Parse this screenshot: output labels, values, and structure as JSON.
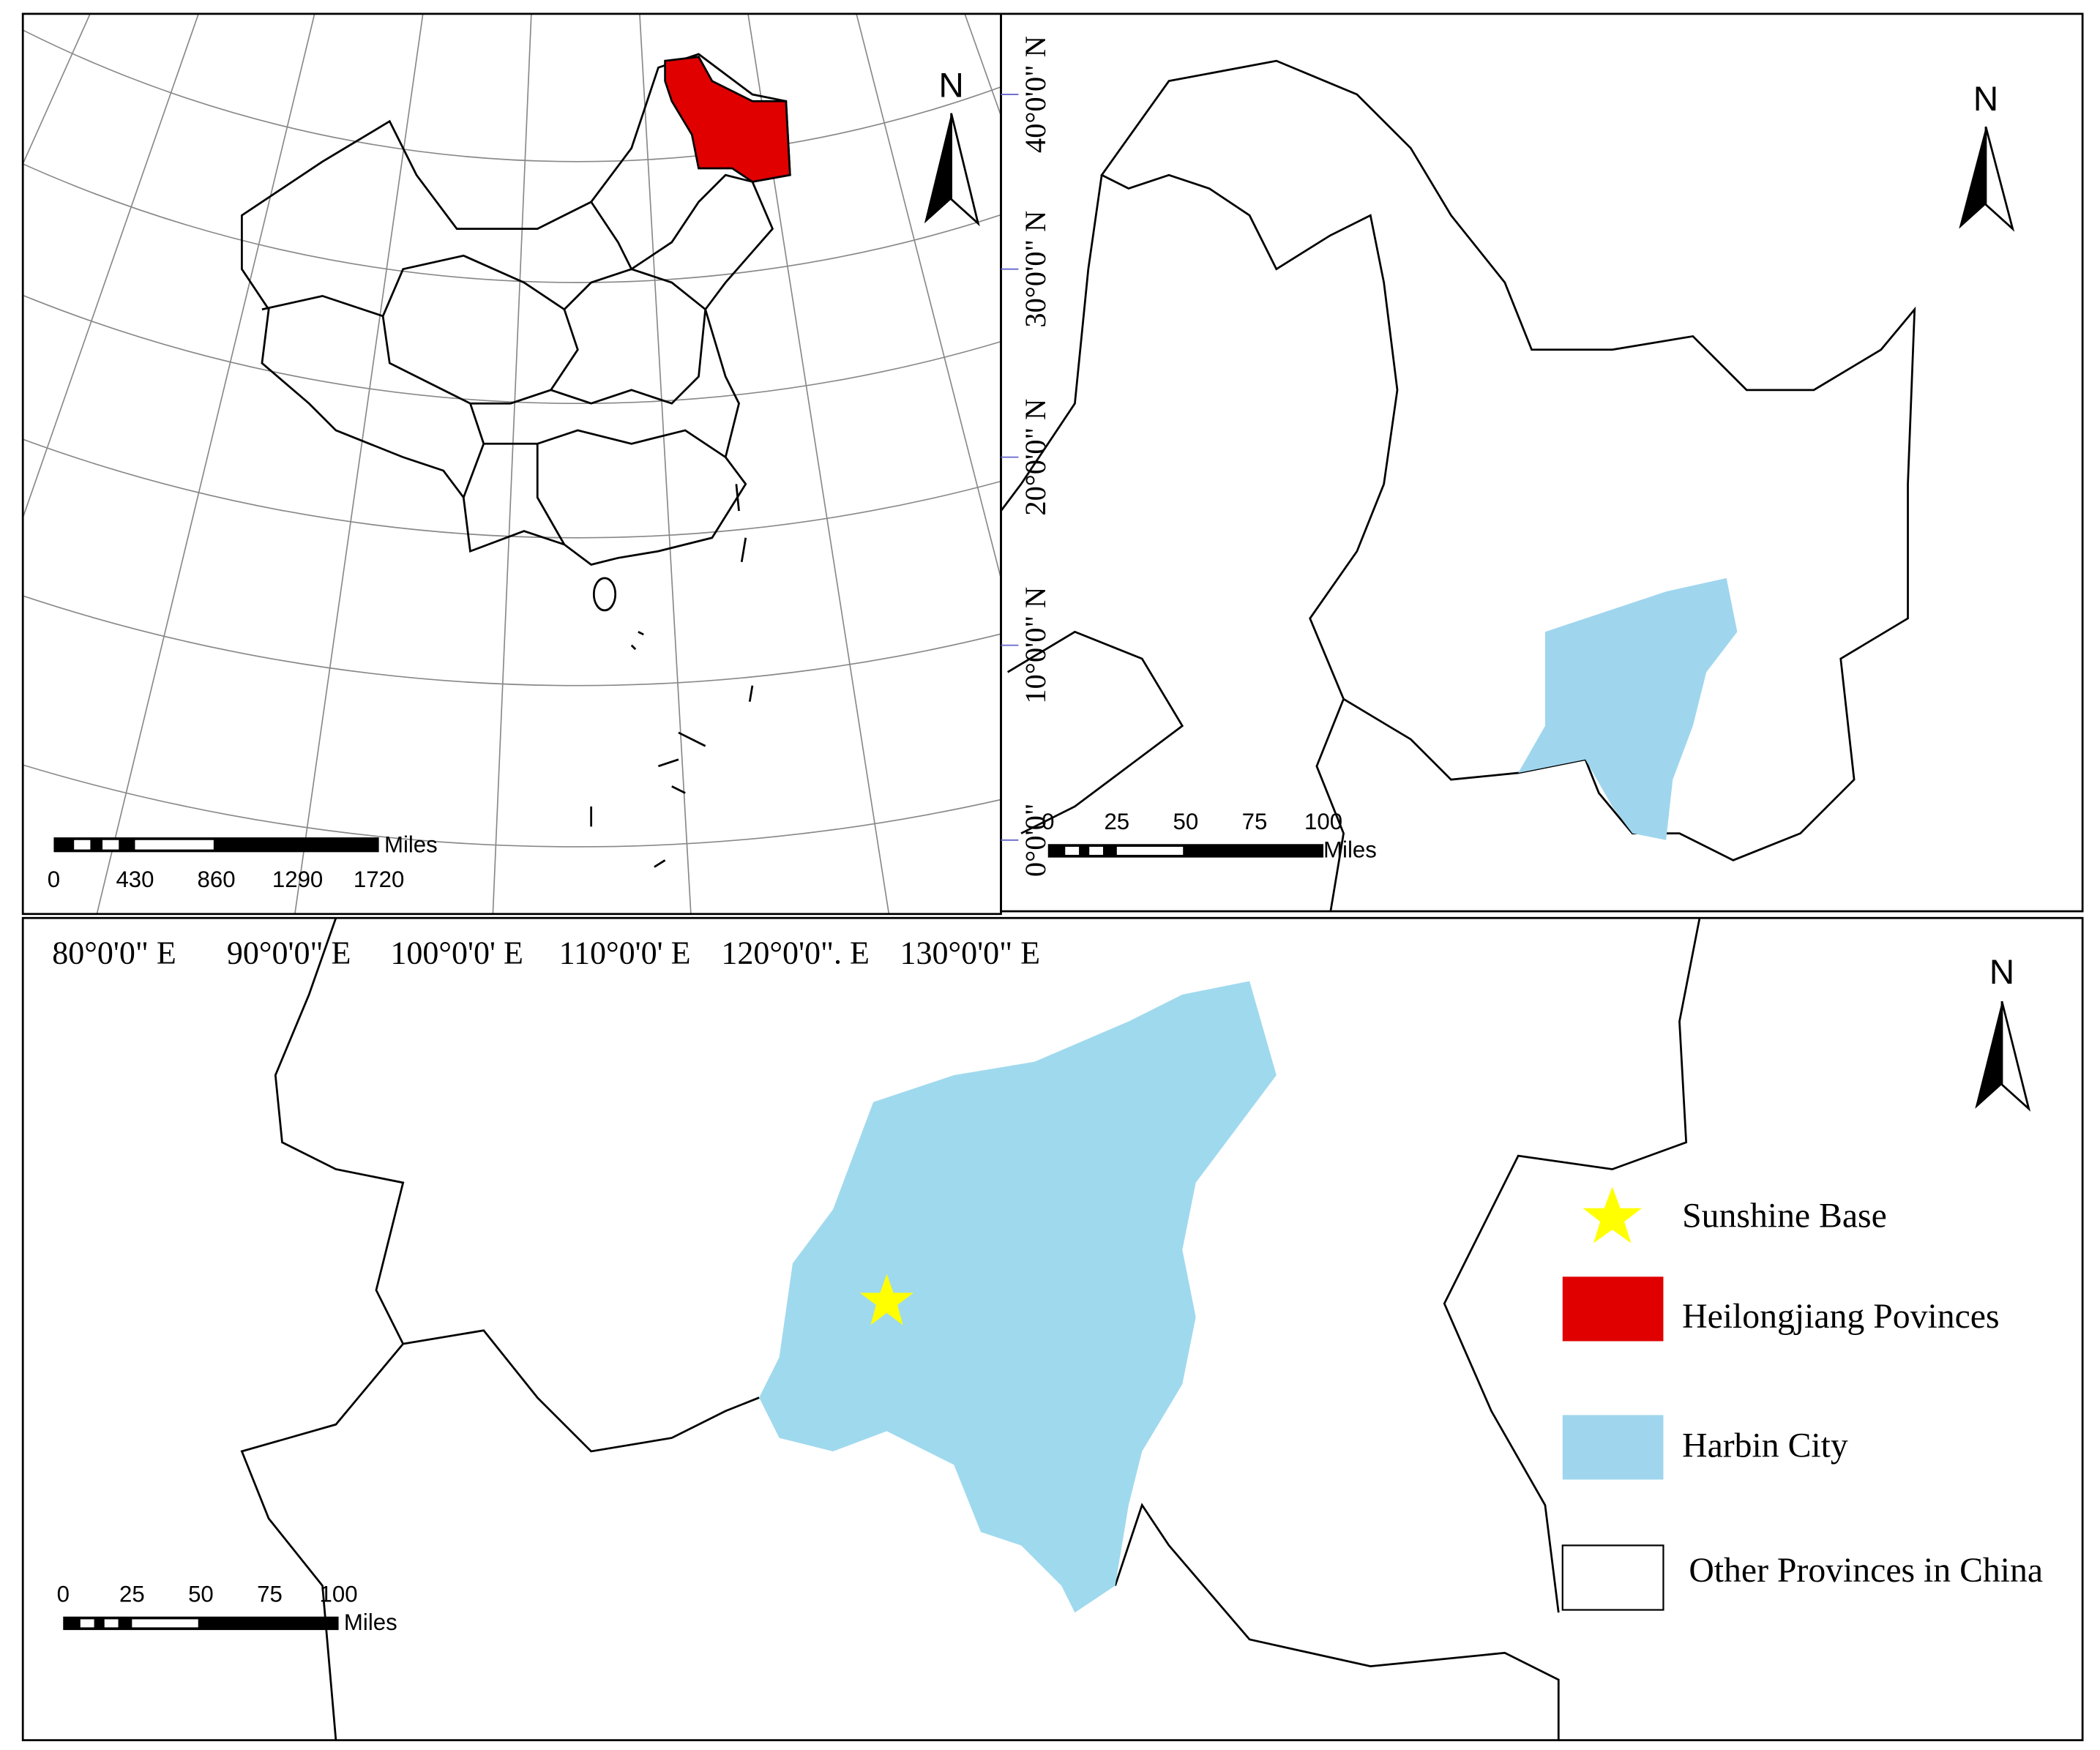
{
  "panels": {
    "china": {
      "north": "N",
      "scale_ticks": [
        "0",
        "430",
        "860",
        "1290",
        "1720"
      ],
      "scale_unit": "Miles",
      "longitude_labels": [
        "80°0'0\" E",
        "90°0'0\" E",
        "100°0'0' E",
        "110°0'0' E",
        "120°0'0\". E",
        "130°0'0\" E"
      ]
    },
    "heilongjiang": {
      "north": "N",
      "scale_ticks": [
        "0",
        "25",
        "50",
        "75",
        "100"
      ],
      "scale_unit": "Miles",
      "latitude_labels": [
        "40°0'0\" N",
        "30°0'0\" N",
        "20°0'0\" N",
        "10°0'0\" N",
        "0°0'0\""
      ]
    },
    "harbin": {
      "north": "N",
      "scale_ticks": [
        "0",
        "25",
        "50",
        "75",
        "100"
      ],
      "scale_unit": "Miles"
    }
  },
  "legend": {
    "items": [
      "Sunshine Base",
      "Heilongjiang Povinces",
      "Harbin City",
      "Other Provinces in China"
    ]
  }
}
